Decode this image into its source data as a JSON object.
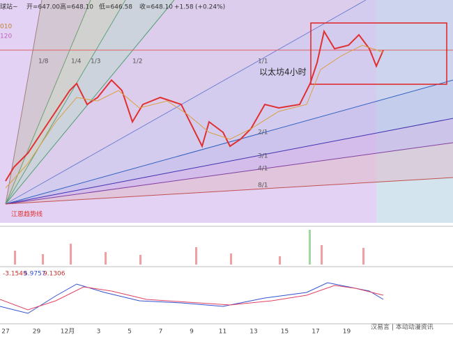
{
  "header": {
    "symbol": "球站~",
    "open": "开=647.00",
    "high": "高=648.10",
    "low": "低=646.58",
    "close": "收=648.10",
    "change": "+1.58",
    "change_pct": "(+0.24%)",
    "side_labels": [
      "010",
      "120"
    ]
  },
  "fan_labels": [
    "1/8",
    "1/4",
    "1/3",
    "1/2",
    "1/1",
    "2/1",
    "3/1",
    "4/1",
    "8/1"
  ],
  "annotation": "以太坊4小时",
  "trendline_label": "江恩趋势线",
  "macd": [
    "-3.1549",
    "5.9757",
    "9.1306"
  ],
  "x_labels": [
    "27",
    "29",
    "12月",
    "3",
    "5",
    "7",
    "9",
    "11",
    "13",
    "15",
    "17",
    "19"
  ],
  "watermark": "汉易言 | 本动动漫资讯"
}
